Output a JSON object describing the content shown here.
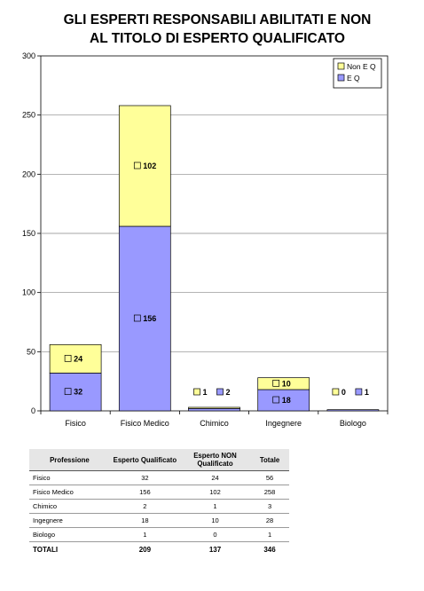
{
  "title_lines": [
    "GLI ESPERTI RESPONSABILI ABILITATI E NON",
    "AL TITOLO DI ESPERTO QUALIFICATO"
  ],
  "chart_data": {
    "type": "bar",
    "stacked": true,
    "categories": [
      "Fisico",
      "Fisico Medico",
      "Chimico",
      "Ingegnere",
      "Biologo"
    ],
    "series": [
      {
        "name": "E Q",
        "values": [
          32,
          156,
          2,
          18,
          1
        ],
        "color": "#9999ff"
      },
      {
        "name": "Non  E Q",
        "values": [
          24,
          102,
          1,
          10,
          0
        ],
        "color": "#ffff99"
      }
    ],
    "ylim": [
      0,
      300
    ],
    "yticks": [
      0,
      50,
      100,
      150,
      200,
      250,
      300
    ],
    "grid": true,
    "legend": "top-right"
  },
  "table": {
    "headers": [
      "Professione",
      "Esperto Qualificato",
      "Esperto NON Qualificato",
      "Totale"
    ],
    "rows": [
      [
        "Fisico",
        "32",
        "24",
        "56"
      ],
      [
        "Fisico Medico",
        "156",
        "102",
        "258"
      ],
      [
        "Chimico",
        "2",
        "1",
        "3"
      ],
      [
        "Ingegnere",
        "18",
        "10",
        "28"
      ],
      [
        "Biologo",
        "1",
        "0",
        "1"
      ]
    ],
    "totals": [
      "TOTALI",
      "209",
      "137",
      "346"
    ]
  }
}
